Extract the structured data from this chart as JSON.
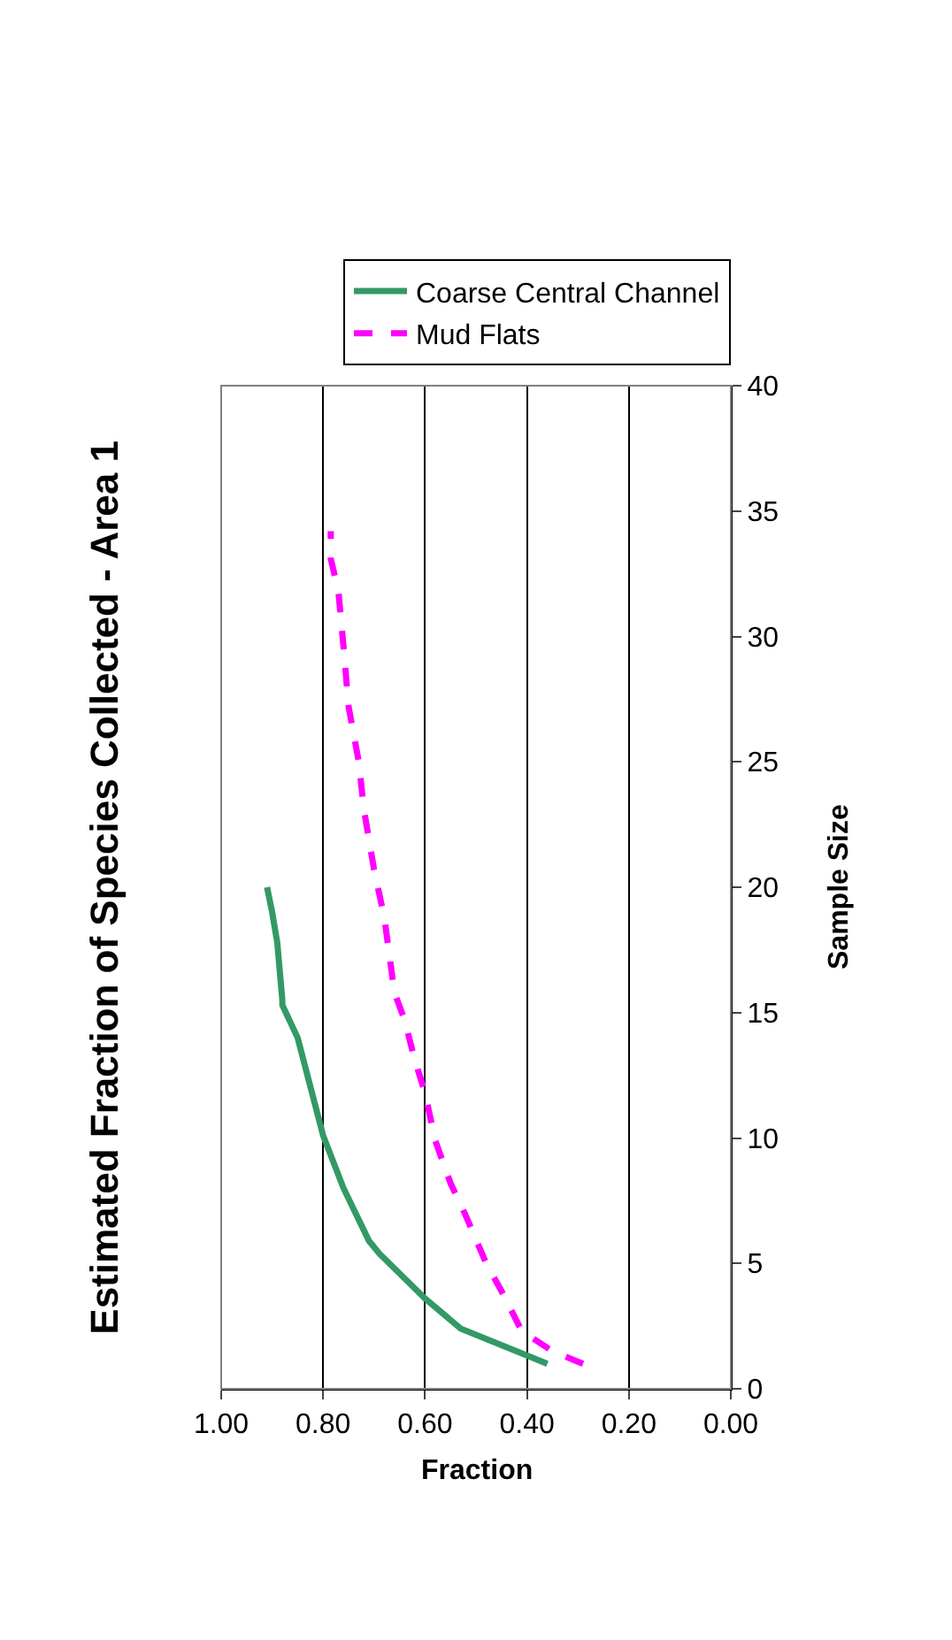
{
  "chart_data": {
    "type": "line",
    "title": "Estimated Fraction of Species Collected - Area 1",
    "xlabel": "Fraction",
    "ylabel": "Sample Size",
    "xlim": [
      1,
      0
    ],
    "xticks": [
      {
        "value": 0,
        "label": "0.00"
      },
      {
        "value": 0.2,
        "label": "0.20"
      },
      {
        "value": 0.4,
        "label": "0.40"
      },
      {
        "value": 0.6,
        "label": "0.60"
      },
      {
        "value": 0.8,
        "label": "0.80"
      },
      {
        "value": 1,
        "label": "1.00"
      }
    ],
    "ylim": [
      0,
      40
    ],
    "yticks": [
      0,
      5,
      10,
      15,
      20,
      25,
      30,
      35,
      40
    ],
    "grid": "x",
    "legend": "top right",
    "series": [
      {
        "name": "Coarse Central Channel",
        "color": "#339966",
        "line_style": "solid",
        "x": [
          0.36,
          0.53,
          0.6,
          0.69,
          0.71,
          0.76,
          0.8,
          0.85,
          0.88,
          0.88,
          0.89,
          0.9,
          0.91
        ],
        "values": [
          1,
          2.4,
          3.6,
          5.4,
          5.9,
          8,
          10.1,
          14,
          15.3,
          15.5,
          17.8,
          19,
          20
        ]
      },
      {
        "name": "Mud Flats",
        "color": "#ff00ff",
        "line_style": "dashed",
        "x": [
          0.29,
          0.35,
          0.41,
          0.45,
          0.48,
          0.52,
          0.55,
          0.58,
          0.6,
          0.62,
          0.64,
          0.66,
          0.68,
          0.7,
          0.72,
          0.73,
          0.75,
          0.76,
          0.77,
          0.785,
          0.785
        ],
        "values": [
          1,
          1.5,
          2.3,
          3.9,
          5,
          6.9,
          8.2,
          9.9,
          11.8,
          13.1,
          14.7,
          15.8,
          18.8,
          20.7,
          23.1,
          25,
          27.2,
          29.6,
          31.8,
          33.1,
          34.2
        ]
      }
    ]
  }
}
